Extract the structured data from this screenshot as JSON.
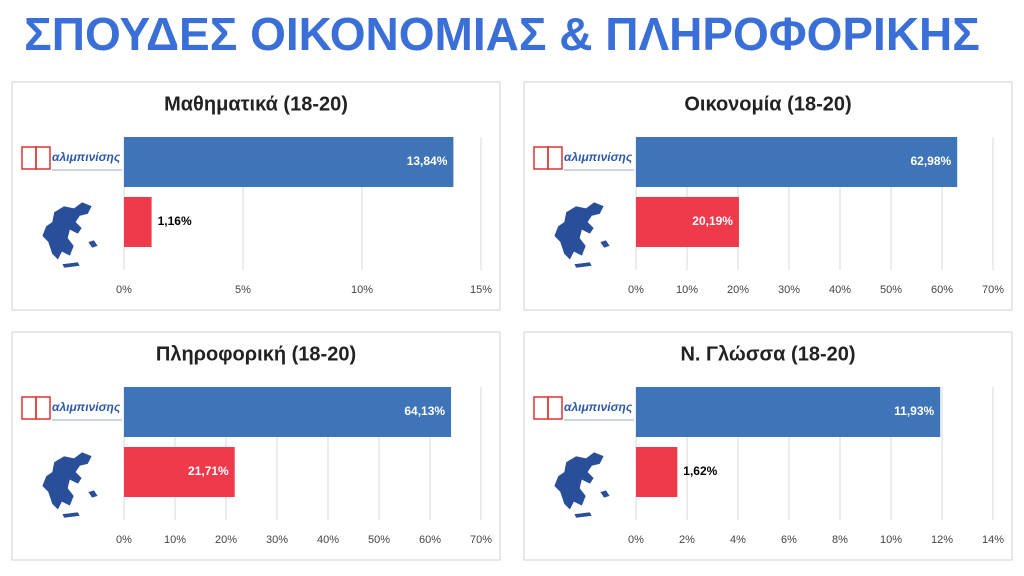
{
  "title": "ΣΠΟΥΔΕΣ ΟΙΚΟΝΟΜΙΑΣ & ΠΛΗΡΟΦΟΡΙΚΗΣ",
  "chart_data": [
    {
      "type": "bar",
      "title": "Μαθηματικά  (18-20)",
      "categories": [
        "αλιμπινίσης",
        null
      ],
      "values": [
        13.84,
        1.16
      ],
      "value_labels": [
        "13,84%",
        "1,16%"
      ],
      "colors": [
        "#3f75b8",
        "#ee3a4a"
      ],
      "xlim": [
        0,
        15
      ],
      "xticks": [
        {
          "value": 0,
          "label": "0%"
        },
        {
          "value": 5,
          "label": "5%"
        },
        {
          "value": 10,
          "label": "10%"
        },
        {
          "value": 15,
          "label": "15%"
        }
      ],
      "grid": true
    },
    {
      "type": "bar",
      "title": "Οικονομία (18-20)",
      "categories": [
        "αλιμπινίσης",
        null
      ],
      "values": [
        62.98,
        20.19
      ],
      "value_labels": [
        "62,98%",
        "20,19%"
      ],
      "colors": [
        "#3f75b8",
        "#ee3a4a"
      ],
      "xlim": [
        0,
        70
      ],
      "xticks": [
        {
          "value": 0,
          "label": "0%"
        },
        {
          "value": 10,
          "label": "10%"
        },
        {
          "value": 20,
          "label": "20%"
        },
        {
          "value": 30,
          "label": "30%"
        },
        {
          "value": 40,
          "label": "40%"
        },
        {
          "value": 50,
          "label": "50%"
        },
        {
          "value": 60,
          "label": "60%"
        },
        {
          "value": 70,
          "label": "70%"
        }
      ],
      "grid": true
    },
    {
      "type": "bar",
      "title": "Πληροφορική  (18-20)",
      "categories": [
        "αλιμπινίσης",
        null
      ],
      "values": [
        64.13,
        21.71
      ],
      "value_labels": [
        "64,13%",
        "21,71%"
      ],
      "colors": [
        "#3f75b8",
        "#ee3a4a"
      ],
      "xlim": [
        0,
        70
      ],
      "xticks": [
        {
          "value": 0,
          "label": "0%"
        },
        {
          "value": 10,
          "label": "10%"
        },
        {
          "value": 20,
          "label": "20%"
        },
        {
          "value": 30,
          "label": "30%"
        },
        {
          "value": 40,
          "label": "40%"
        },
        {
          "value": 50,
          "label": "50%"
        },
        {
          "value": 60,
          "label": "60%"
        },
        {
          "value": 70,
          "label": "70%"
        }
      ],
      "grid": true
    },
    {
      "type": "bar",
      "title": "Ν. Γλώσσα (18-20)",
      "categories": [
        "αλιμπινίσης",
        null
      ],
      "values": [
        11.93,
        1.62
      ],
      "value_labels": [
        "11,93%",
        "1,62%"
      ],
      "colors": [
        "#3f75b8",
        "#ee3a4a"
      ],
      "xlim": [
        0,
        14
      ],
      "xticks": [
        {
          "value": 0,
          "label": "0%"
        },
        {
          "value": 2,
          "label": "2%"
        },
        {
          "value": 4,
          "label": "4%"
        },
        {
          "value": 6,
          "label": "6%"
        },
        {
          "value": 8,
          "label": "8%"
        },
        {
          "value": 10,
          "label": "10%"
        },
        {
          "value": 12,
          "label": "12%"
        },
        {
          "value": 14,
          "label": "14%"
        }
      ],
      "grid": true
    }
  ]
}
